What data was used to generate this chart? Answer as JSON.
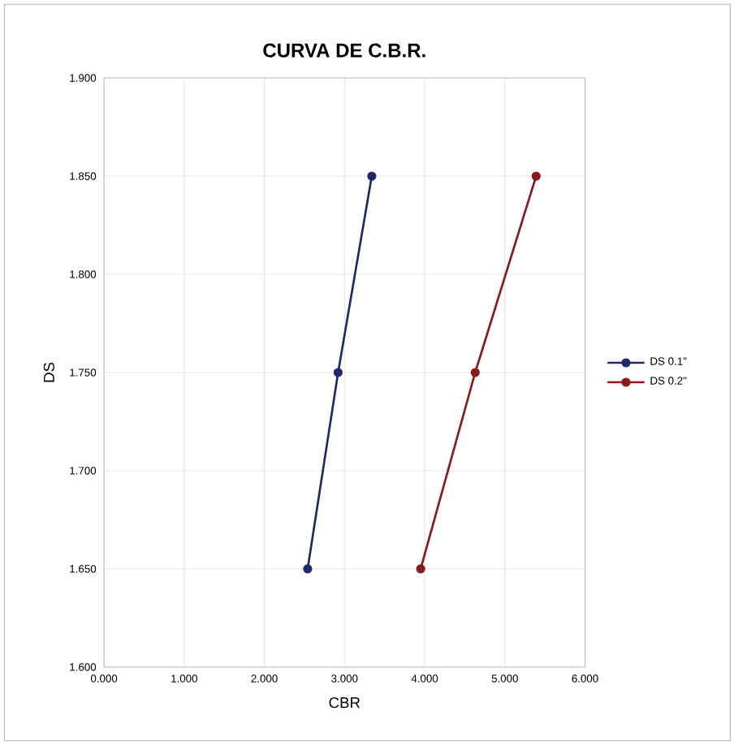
{
  "chart_data": {
    "type": "line",
    "title": "CURVA DE C.B.R.",
    "xlabel": "CBR",
    "ylabel": "DS",
    "series": [
      {
        "name": "DS 0.1\"",
        "color": "#1f2a6b",
        "x": [
          2.54,
          2.92,
          3.34
        ],
        "values": [
          1.65,
          1.75,
          1.85
        ]
      },
      {
        "name": "DS 0.2\"",
        "color": "#8b1a1a",
        "x": [
          3.95,
          4.63,
          5.39
        ],
        "values": [
          1.65,
          1.75,
          1.85
        ]
      }
    ],
    "xlim": [
      0,
      6
    ],
    "ylim": [
      1.6,
      1.9
    ],
    "xticks": [
      {
        "value": 0,
        "label": "0.000"
      },
      {
        "value": 1,
        "label": "1.000"
      },
      {
        "value": 2,
        "label": "2.000"
      },
      {
        "value": 3,
        "label": "3.000"
      },
      {
        "value": 4,
        "label": "4.000"
      },
      {
        "value": 5,
        "label": "5.000"
      },
      {
        "value": 6,
        "label": "6.000"
      }
    ],
    "yticks": [
      {
        "value": 1.6,
        "label": "1.600"
      },
      {
        "value": 1.65,
        "label": "1.650"
      },
      {
        "value": 1.7,
        "label": "1.700"
      },
      {
        "value": 1.75,
        "label": "1.750"
      },
      {
        "value": 1.8,
        "label": "1.800"
      },
      {
        "value": 1.85,
        "label": "1.850"
      },
      {
        "value": 1.9,
        "label": "1.900"
      }
    ],
    "grid": true,
    "legend": "right",
    "marker": "circle",
    "line_style": "solid"
  }
}
